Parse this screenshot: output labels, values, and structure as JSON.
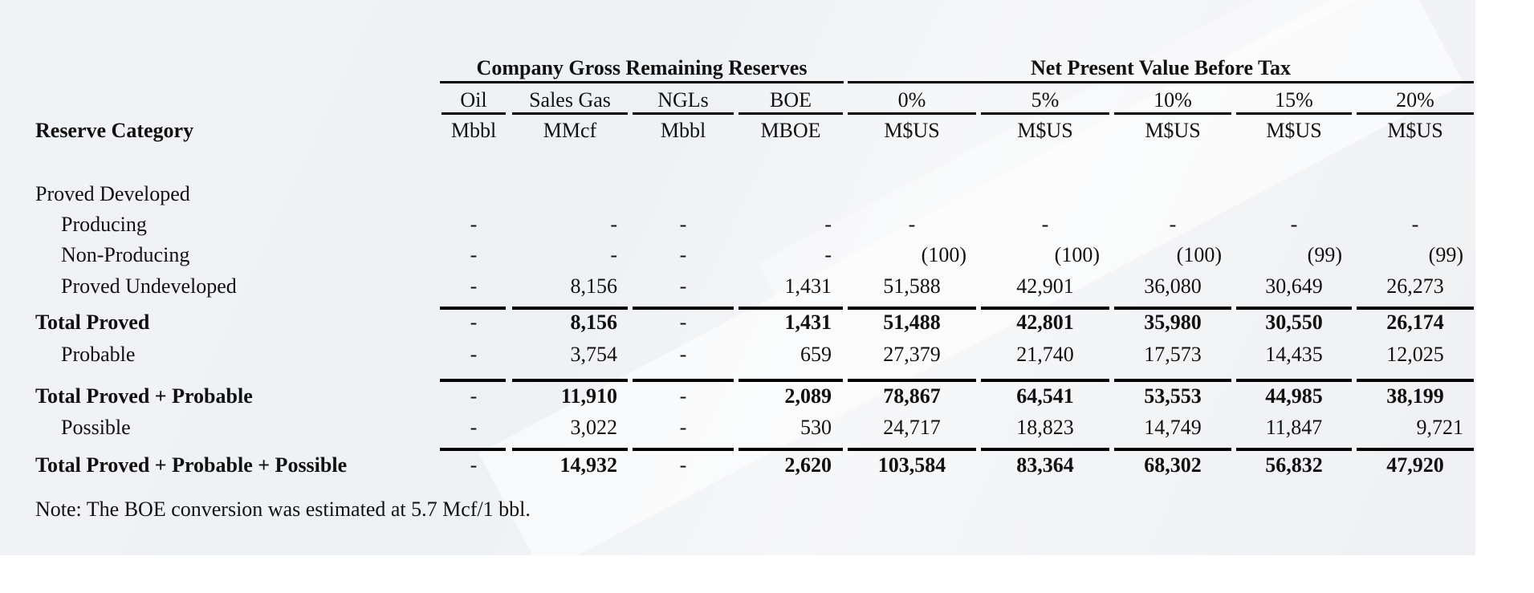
{
  "header": {
    "group_reserves": "Company Gross Remaining Reserves",
    "group_npv": "Net Present Value Before Tax",
    "row_label": "Reserve Category"
  },
  "columns": [
    {
      "label": "Oil",
      "unit": "Mbbl"
    },
    {
      "label": "Sales Gas",
      "unit": "MMcf"
    },
    {
      "label": "NGLs",
      "unit": "Mbbl"
    },
    {
      "label": "BOE",
      "unit": "MBOE"
    },
    {
      "label": "0%",
      "unit": "M$US"
    },
    {
      "label": "5%",
      "unit": "M$US"
    },
    {
      "label": "10%",
      "unit": "M$US"
    },
    {
      "label": "15%",
      "unit": "M$US"
    },
    {
      "label": "20%",
      "unit": "M$US"
    }
  ],
  "rows": [
    {
      "label": "Proved Developed",
      "values": []
    },
    {
      "label": "Producing",
      "values": [
        "-",
        "-",
        "-",
        "-",
        "-",
        "-",
        "-",
        "-",
        "-"
      ]
    },
    {
      "label": "Non-Producing",
      "values": [
        "-",
        "-",
        "-",
        "-",
        "(100)",
        "(100)",
        "(100)",
        "(99)",
        "(99)"
      ]
    },
    {
      "label": "Proved Undeveloped",
      "values": [
        "-",
        "8,156",
        "-",
        "1,431",
        "51,588",
        "42,901",
        "36,080",
        "30,649",
        "26,273"
      ]
    },
    {
      "label": "Total Proved",
      "values": [
        "-",
        "8,156",
        "-",
        "1,431",
        "51,488",
        "42,801",
        "35,980",
        "30,550",
        "26,174"
      ]
    },
    {
      "label": "Probable",
      "values": [
        "-",
        "3,754",
        "-",
        "659",
        "27,379",
        "21,740",
        "17,573",
        "14,435",
        "12,025"
      ]
    },
    {
      "label": "Total Proved + Probable",
      "values": [
        "-",
        "11,910",
        "-",
        "2,089",
        "78,867",
        "64,541",
        "53,553",
        "44,985",
        "38,199"
      ]
    },
    {
      "label": "Possible",
      "values": [
        "-",
        "3,022",
        "-",
        "530",
        "24,717",
        "18,823",
        "14,749",
        "11,847",
        "9,721"
      ]
    },
    {
      "label": "Total Proved + Probable + Possible",
      "values": [
        "-",
        "14,932",
        "-",
        "2,620",
        "103,584",
        "83,364",
        "68,302",
        "56,832",
        "47,920"
      ]
    }
  ],
  "note": "Note: The BOE conversion was estimated at 5.7 Mcf/1 bbl."
}
